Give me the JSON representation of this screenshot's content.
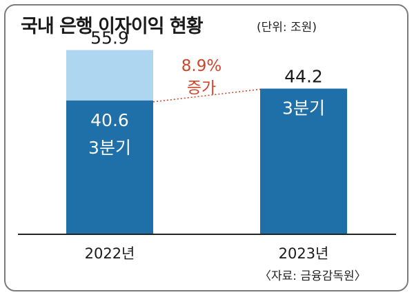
{
  "title": "국내 은행 이자이익 현황",
  "unit": "(단위: 조원)",
  "source": "〈자료: 금융감독원〉",
  "colors": {
    "dark_bar": "#1f6fa8",
    "light_bar": "#aed6f1",
    "annotation": "#d2442a",
    "axis": "#222222"
  },
  "chart_data": {
    "type": "bar",
    "categories": [
      "2022년",
      "2023년"
    ],
    "stacks": [
      {
        "category": "2022년",
        "total": 55.9,
        "total_label": "55.9",
        "segment": 40.6,
        "segment_value_label": "40.6",
        "segment_name": "3분기"
      },
      {
        "category": "2023년",
        "total": 44.2,
        "total_label": "44.2",
        "segment": 44.2,
        "segment_name": "3분기"
      }
    ],
    "annotation": {
      "value": "8.9%",
      "text": "증가"
    },
    "ylim": [
      0,
      60
    ]
  }
}
